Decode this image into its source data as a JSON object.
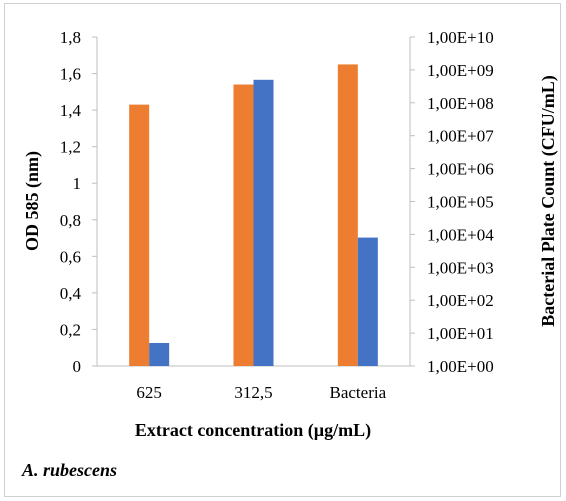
{
  "chart_data": {
    "type": "bar",
    "categories": [
      "625",
      "312,5",
      "Bacteria"
    ],
    "series": [
      {
        "color": "#ED7D31",
        "axis": "left",
        "values": [
          1.43,
          1.54,
          1.65
        ]
      },
      {
        "color": "#4472C4",
        "axis": "right",
        "values": [
          5,
          500000000,
          8000
        ]
      }
    ],
    "xlabel": "Extract concentration (µg/mL)",
    "ylabel": "OD 585 (nm)",
    "y2label": "Bacterial Plate Count (CFU/mL)",
    "ylim": [
      0,
      1.8
    ],
    "y2lim": [
      1,
      10000000000
    ],
    "y2scale": "log",
    "yticks": [
      "0",
      "0,2",
      "0,4",
      "0,6",
      "0,8",
      "1",
      "1,2",
      "1,4",
      "1,6",
      "1,8"
    ],
    "y2ticks": [
      "1,00E+00",
      "1,00E+01",
      "1,00E+02",
      "1,00E+03",
      "1,00E+04",
      "1,00E+05",
      "1,00E+06",
      "1,00E+07",
      "1,00E+08",
      "1,00E+09",
      "1,00E+10"
    ],
    "grid": false,
    "legend": "none"
  },
  "caption": "A. rubescens"
}
